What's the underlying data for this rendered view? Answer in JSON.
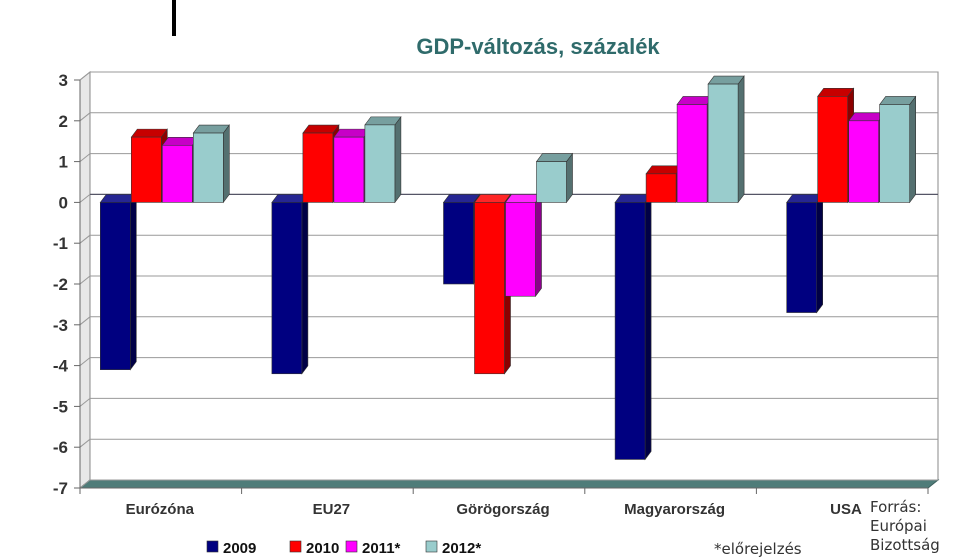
{
  "chart_data": {
    "type": "bar",
    "title": "GDP-változás, százalék",
    "categories": [
      "Eurózóna",
      "EU27",
      "Görögország",
      "Magyarország",
      "USA"
    ],
    "series": [
      {
        "name": "2009",
        "color": "#000080",
        "values": [
          -4.1,
          -4.2,
          -2.0,
          -6.3,
          -2.7
        ]
      },
      {
        "name": "2010",
        "color": "#ff0000",
        "values": [
          1.6,
          1.7,
          -4.2,
          0.7,
          2.6
        ]
      },
      {
        "name": "2011*",
        "color": "#ff00ff",
        "values": [
          1.4,
          1.6,
          -2.3,
          2.4,
          2.0
        ]
      },
      {
        "name": "2012*",
        "color": "#99cccc",
        "values": [
          1.7,
          1.9,
          1.0,
          2.9,
          2.4
        ]
      }
    ],
    "ylim": [
      -7,
      3
    ],
    "yticks": [
      3,
      2,
      1,
      0,
      -1,
      -2,
      -3,
      -4,
      -5,
      -6,
      -7
    ],
    "grid": true,
    "legend_position": "bottom"
  },
  "footnote": "*előrejelzés",
  "source": "Forrás: Európai Bizottság"
}
